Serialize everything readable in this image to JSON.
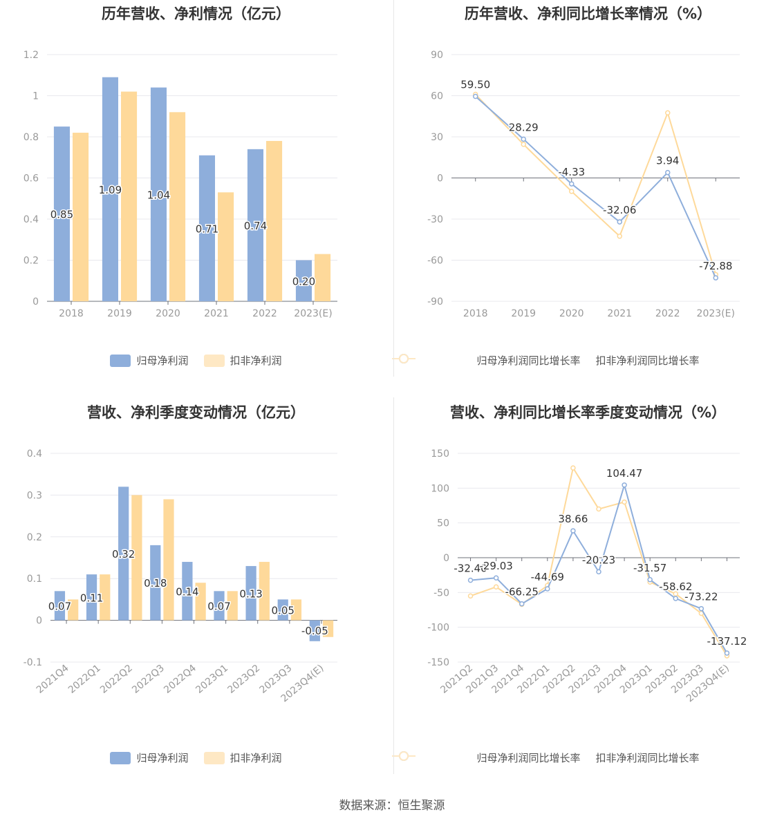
{
  "source": "数据来源：恒生聚源",
  "colors": {
    "primary": "#8eaedb",
    "secondary": "#fed99a",
    "secondary_light": "#fee8c4",
    "grid": "#e8e8ee",
    "axis": "#6e7079"
  },
  "legend_labels": {
    "bar_a": "归母净利润",
    "bar_b": "扣非净利润",
    "line_a": "归母净利润同比增长率",
    "line_b": "扣非净利润同比增长率"
  },
  "chart_data": [
    {
      "type": "bar",
      "title": "历年营收、净利情况（亿元）",
      "categories": [
        "2018",
        "2019",
        "2020",
        "2021",
        "2022",
        "2023(E)"
      ],
      "yticks": [
        "0",
        "0.2",
        "0.4",
        "0.6",
        "0.8",
        "1",
        "1.2"
      ],
      "ylim": [
        0,
        1.2
      ],
      "series": [
        {
          "name": "归母净利润",
          "values": [
            0.85,
            1.09,
            1.04,
            0.71,
            0.74,
            0.2
          ],
          "labels": [
            "0.85",
            "1.09",
            "1.04",
            "0.71",
            "0.74",
            "0.20"
          ]
        },
        {
          "name": "扣非净利润",
          "values": [
            0.82,
            1.02,
            0.92,
            0.53,
            0.78,
            0.23
          ]
        }
      ],
      "legend": "bottom"
    },
    {
      "type": "line",
      "title": "历年营收、净利同比增长率情况（%）",
      "categories": [
        "2018",
        "2019",
        "2020",
        "2021",
        "2022",
        "2023(E)"
      ],
      "yticks": [
        "-90",
        "-60",
        "-30",
        "0",
        "30",
        "60",
        "90"
      ],
      "ylim": [
        -90,
        90
      ],
      "series": [
        {
          "name": "归母净利润同比增长率",
          "values": [
            59.5,
            28.29,
            -4.33,
            -32.06,
            3.94,
            -72.88
          ],
          "labels": [
            "59.50",
            "28.29",
            "-4.33",
            "-32.06",
            "3.94",
            "-72.88"
          ]
        },
        {
          "name": "扣非净利润同比增长率",
          "values": [
            61.0,
            24.5,
            -9.8,
            -42.5,
            47.5,
            -70.5
          ]
        }
      ],
      "legend": "bottom"
    },
    {
      "type": "bar",
      "title": "营收、净利季度变动情况（亿元）",
      "categories": [
        "2021Q4",
        "2022Q1",
        "2022Q2",
        "2022Q3",
        "2022Q4",
        "2023Q1",
        "2023Q2",
        "2023Q3",
        "2023Q4(E)"
      ],
      "yticks": [
        "-0.1",
        "0",
        "0.1",
        "0.2",
        "0.3",
        "0.4"
      ],
      "ylim": [
        -0.1,
        0.4
      ],
      "series": [
        {
          "name": "归母净利润",
          "values": [
            0.07,
            0.11,
            0.32,
            0.18,
            0.14,
            0.07,
            0.13,
            0.05,
            -0.05
          ],
          "labels": [
            "0.07",
            "0.11",
            "0.32",
            "0.18",
            "0.14",
            "0.07",
            "0.13",
            "0.05",
            "-0.05"
          ]
        },
        {
          "name": "扣非净利润",
          "values": [
            0.05,
            0.11,
            0.3,
            0.29,
            0.09,
            0.07,
            0.14,
            0.05,
            -0.04
          ]
        }
      ],
      "legend": "bottom"
    },
    {
      "type": "line",
      "title": "营收、净利同比增长率季度变动情况（%）",
      "categories": [
        "2021Q2",
        "2021Q3",
        "2021Q4",
        "2022Q1",
        "2022Q2",
        "2022Q3",
        "2022Q4",
        "2023Q1",
        "2023Q2",
        "2023Q3",
        "2023Q4(E)"
      ],
      "yticks": [
        "-150",
        "-100",
        "-50",
        "0",
        "50",
        "100",
        "150"
      ],
      "ylim": [
        -150,
        150
      ],
      "series": [
        {
          "name": "归母净利润同比增长率",
          "values": [
            -32.4,
            -29.03,
            -66.25,
            -44.69,
            38.66,
            -20.23,
            104.47,
            -31.57,
            -58.62,
            -73.22,
            -137.12
          ],
          "labels": [
            "-32.40",
            "-29.03",
            "-66.25",
            "-44.69",
            "38.66",
            "-20.23",
            "104.47",
            "-31.57",
            "-58.62",
            "-73.22",
            "-137.12"
          ]
        },
        {
          "name": "扣非净利润同比增长率",
          "values": [
            -55,
            -42,
            -67,
            -40,
            129,
            70,
            80,
            -35,
            -52,
            -80,
            -141
          ]
        }
      ],
      "legend": "bottom"
    }
  ]
}
